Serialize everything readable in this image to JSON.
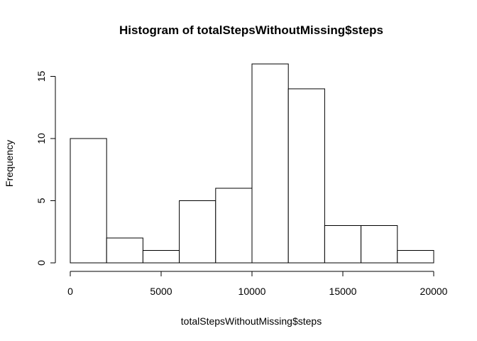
{
  "chart_data": {
    "type": "bar",
    "title": "Histogram of totalStepsWithoutMissing$steps",
    "xlabel": "totalStepsWithoutMissing$steps",
    "ylabel": "Frequency",
    "bin_edges": [
      0,
      2000,
      4000,
      6000,
      8000,
      10000,
      12000,
      14000,
      16000,
      18000,
      20000
    ],
    "values": [
      10,
      2,
      1,
      5,
      6,
      16,
      14,
      3,
      3,
      1
    ],
    "xlim": [
      0,
      20000
    ],
    "ylim": [
      0,
      16
    ],
    "x_ticks": [
      0,
      5000,
      10000,
      15000,
      20000
    ],
    "y_ticks": [
      0,
      5,
      10,
      15
    ],
    "grid": false,
    "legend": "none",
    "colors": {
      "bar_fill": "#ffffff",
      "bar_stroke": "#000000"
    }
  }
}
